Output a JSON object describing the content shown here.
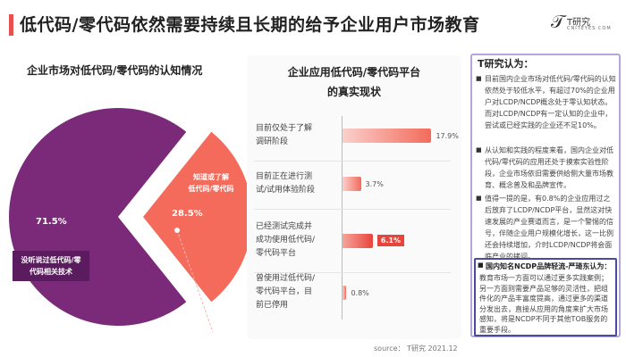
{
  "header": {
    "title": "低代码/零代码依然需要持续且长期的给予企业用户市场教育",
    "logo_mark": "𝒯",
    "logo_name": "T研究",
    "logo_url": "CNITEYES.COM"
  },
  "colors": {
    "accent": "#e94f4f",
    "pie_unaware": "#7b2a7a",
    "pie_aware": "#f46a5b",
    "bar": "#f26b5c",
    "highlight_box": "#4a4a9e"
  },
  "chart_data": [
    {
      "type": "pie",
      "title": "企业市场对低代码/零代码的认知情况",
      "slices": [
        {
          "label": "没听说过低代码/零代码相关技术",
          "label_lines": [
            "没听说过低代码/零",
            "代码相关技术"
          ],
          "value": 71.5,
          "value_label": "71.5%"
        },
        {
          "label": "知道或了解低代码/零代码",
          "label_lines": [
            "知道或了解",
            "低代码/零代码"
          ],
          "value": 28.5,
          "value_label": "28.5%"
        }
      ]
    },
    {
      "type": "bar",
      "orientation": "horizontal",
      "title": "企业应用低代码/零代码平台的真实现状",
      "categories": [
        "目前仅处于了解调研阶段",
        "目前正在进行测试/试用体验阶段",
        "已经测试完成并成功使用低代码/零代码平台",
        "曾使用过低代码/零代码平台，目前已停用"
      ],
      "category_lines": [
        [
          "目前仅处于了解",
          "调研阶段"
        ],
        [
          "目前正在进行测",
          "试/试用体验阶段"
        ],
        [
          "已经测试完成并",
          "成功使用低代码/",
          "零代码平台"
        ],
        [
          "曾使用过低代码/",
          "零代码平台，目",
          "前已停用"
        ]
      ],
      "values": [
        17.9,
        3.7,
        6.1,
        0.8
      ],
      "value_labels": [
        "17.9%",
        "3.7%",
        "6.1%",
        "0.8%"
      ],
      "highlight_index": 2
    }
  ],
  "insights": {
    "heading": "T研究认为：",
    "points": [
      "目前国内企业市场对低代码/零代码的认知依然处于较低水平，有超过70%的企业用户对LCDP/NCDP概念处于零认知状态。而对LCDP/NCDP有一定认知的企业中，尝试或已经实践的企业还不足10%。",
      "从认知和实践的程度来看，国内企业对低代码/零代码的应用还处于摸索实验性阶段，企业市场依旧需要供给侧大量市场教育、概念普及和品牌宣传。",
      "值得一提的是，有0.8%的企业应用过之后放弃了LCDP/NCDP平台，显然这对快速发展的产业赛道而言，是一个警惕的信号，伴随企业用户规模化增长，这一比例还会持续增加，介时LCDP/NCDP将会面临产业的拷问。"
    ],
    "quote_heading": "国内知名NCDP品牌轻流-严琦东认为：",
    "quote_text": "教育市场一方面可以通过更多实践案例；另一方面则需要产品足够的灵活性，把组件化的产品丰富度提高，通过更多的渠道分发出去，直接从应用的角度来扩大市场感知，将是NCDP不同于其他TOB服务的重要手段。"
  },
  "source": "source： T研究 2021.12"
}
